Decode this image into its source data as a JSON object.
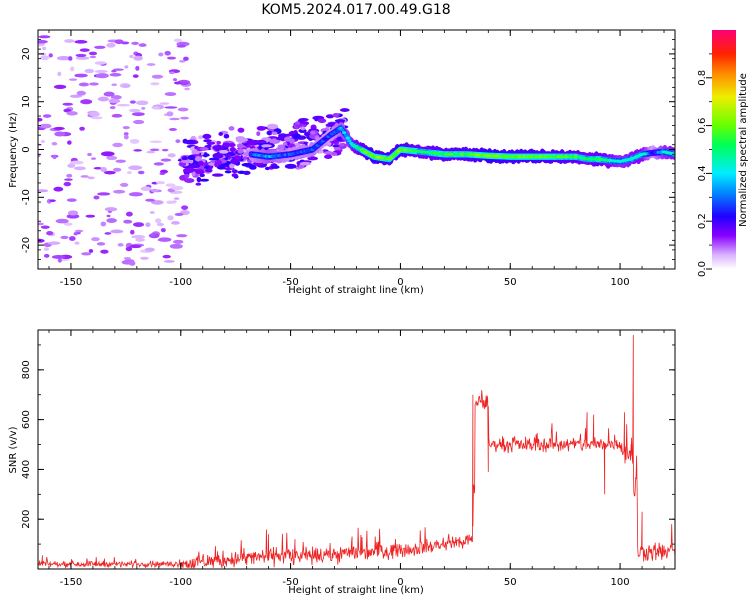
{
  "figure": {
    "title": "KOM5.2024.017.00.49.G18"
  },
  "chart_data": [
    {
      "type": "heatmap",
      "xlabel": "Height of straight line (km)",
      "ylabel": "Frequency (Hz)",
      "xlim": [
        -165,
        125
      ],
      "ylim": [
        -25,
        25
      ],
      "xticks": [
        -150,
        -100,
        -50,
        0,
        50,
        100
      ],
      "yticks": [
        -20,
        -10,
        0,
        10,
        20
      ],
      "colorbar": {
        "label": "Normalized spectral amplitude",
        "range": [
          0,
          1
        ],
        "ticks": [
          0.0,
          0.2,
          0.4,
          0.6,
          0.8
        ],
        "colormap": [
          "#ffffff",
          "#d9b0ff",
          "#8800ff",
          "#2200ff",
          "#0088ff",
          "#00eeff",
          "#00ff55",
          "#66ff00",
          "#eeee00",
          "#ff8800",
          "#ff2200",
          "#ff0077"
        ]
      },
      "ridge": {
        "x": [
          -68,
          -60,
          -50,
          -40,
          -32,
          -27,
          -22,
          -18,
          -12,
          -5,
          0,
          10,
          20,
          30,
          40,
          50,
          60,
          70,
          80,
          85,
          90,
          95,
          100,
          105,
          110,
          115,
          120,
          125
        ],
        "y": [
          -1,
          -1.5,
          -1,
          0,
          3,
          4.5,
          1,
          0,
          -1.5,
          -2,
          0,
          -0.5,
          -1,
          -1,
          -1.3,
          -1.5,
          -1.5,
          -1.5,
          -1.5,
          -2,
          -2,
          -2.3,
          -2.5,
          -2,
          -1,
          -0.7,
          -0.5,
          -1
        ],
        "amplitude": [
          0.22,
          0.3,
          0.22,
          0.25,
          0.2,
          0.28,
          0.36,
          0.48,
          0.58,
          0.52,
          0.55,
          0.45,
          0.5,
          0.5,
          0.58,
          0.55,
          0.55,
          0.52,
          0.5,
          0.42,
          0.5,
          0.4,
          0.35,
          0.38,
          0.4,
          0.2,
          0.35,
          0.38
        ]
      }
    },
    {
      "type": "line",
      "xlabel": "Height of straight line (km)",
      "ylabel": "SNR (v/v)",
      "xlim": [
        -165,
        125
      ],
      "ylim": [
        0,
        960
      ],
      "xticks": [
        -150,
        -100,
        -50,
        0,
        50,
        100
      ],
      "yticks": [
        200,
        400,
        600,
        800
      ],
      "series_color": "#ee2222",
      "segments": [
        {
          "x": [
            -165,
            -100
          ],
          "mean": 20,
          "noise": 12
        },
        {
          "x": [
            -100,
            -50
          ],
          "mean": 45,
          "noise": 35
        },
        {
          "x": [
            -50,
            0
          ],
          "mean": 60,
          "noise": 35
        },
        {
          "x": [
            0,
            33
          ],
          "mean": 85,
          "noise": 30
        },
        {
          "x": [
            34,
            40
          ],
          "mean": 670,
          "noise": 35
        },
        {
          "x": [
            40,
            100
          ],
          "mean": 500,
          "noise": 30
        },
        {
          "x": [
            100,
            106
          ],
          "mean": 480,
          "noise": 60
        },
        {
          "x": [
            108,
            125
          ],
          "mean": 70,
          "noise": 40
        }
      ],
      "spikes": [
        [
          -163,
          55
        ],
        [
          -60,
          140
        ],
        [
          -48,
          120
        ],
        [
          -22,
          130
        ],
        [
          -10,
          110
        ],
        [
          33,
          700
        ],
        [
          40,
          390
        ],
        [
          85,
          630
        ],
        [
          88,
          620
        ],
        [
          93,
          300
        ],
        [
          102,
          630
        ],
        [
          105,
          500
        ],
        [
          106,
          940
        ],
        [
          107,
          350
        ],
        [
          110,
          230
        ]
      ]
    }
  ]
}
